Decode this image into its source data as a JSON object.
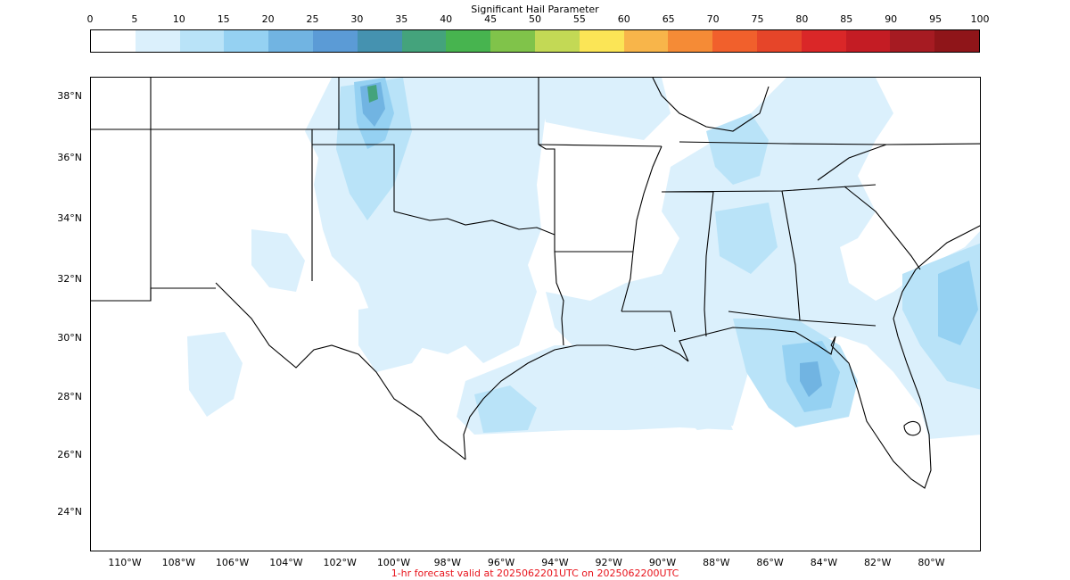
{
  "colorbar": {
    "title": "Significant Hail Parameter",
    "ticks": [
      "0",
      "5",
      "10",
      "15",
      "20",
      "25",
      "30",
      "35",
      "40",
      "45",
      "50",
      "55",
      "60",
      "65",
      "70",
      "75",
      "80",
      "85",
      "90",
      "95",
      "100"
    ],
    "colors": [
      "#ffffff",
      "#dbf0fc",
      "#b9e3f8",
      "#95d1f2",
      "#71b4e2",
      "#5b9bd6",
      "#4592b0",
      "#44a37c",
      "#47b44f",
      "#80c34a",
      "#c3d955",
      "#fbe556",
      "#f8b54a",
      "#f58b36",
      "#f1602c",
      "#e64529",
      "#da2728",
      "#c41c24",
      "#a61b22",
      "#8f1519"
    ]
  },
  "map": {
    "lat_labels": [
      "38°N",
      "36°N",
      "34°N",
      "32°N",
      "30°N",
      "28°N",
      "26°N",
      "24°N"
    ],
    "lon_labels": [
      "110°W",
      "108°W",
      "106°W",
      "104°W",
      "102°W",
      "100°W",
      "98°W",
      "96°W",
      "94°W",
      "92°W",
      "90°W",
      "88°W",
      "86°W",
      "84°W",
      "82°W",
      "80°W"
    ]
  },
  "footer": "1-hr forecast valid at 2025062201UTC on 2025062200UTC"
}
